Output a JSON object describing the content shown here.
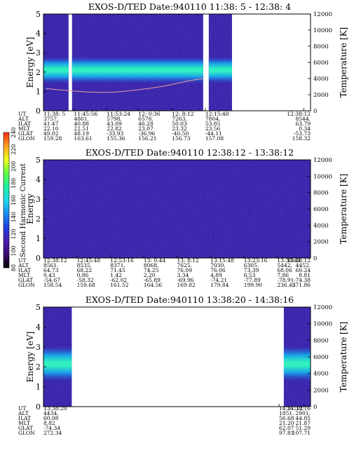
{
  "colorbar": {
    "label": "Second Harmonic Current",
    "ticks": [
      "80",
      "100",
      "120",
      "140",
      "160",
      "180",
      "200",
      "220",
      "240"
    ],
    "stops": [
      "#000000",
      "#3a0a70",
      "#4a1fb0",
      "#2040e0",
      "#1890f0",
      "#20d8e8",
      "#20f0a0",
      "#60ff40",
      "#f0ff20",
      "#ffa020",
      "#ff2a10"
    ]
  },
  "chart_data": [
    {
      "type": "heatmap",
      "title": "EXOS-D/TED   Date:940110  11:38: 5 - 12:38: 4",
      "ylabel": "Energy [eV]",
      "y2label": "Temperature [K]",
      "ylim": [
        0,
        5
      ],
      "y2lim": [
        0,
        12000
      ],
      "yticks": [
        "0",
        "1",
        "2",
        "3",
        "4",
        "5"
      ],
      "y2ticks": [
        "0",
        "2000",
        "4000",
        "6000",
        "8000",
        "10000",
        "12000"
      ],
      "row_labels": [
        "UT",
        "ALT",
        "ILAT",
        "MLT",
        "GLAT",
        "GLON"
      ],
      "columns": [
        [
          "11:38: 5",
          "3757.",
          "41.47",
          "22.10",
          "49.02",
          "159.28"
        ],
        [
          "11:45:56",
          "4861.",
          "40.88",
          "22.51",
          "48.19",
          "163.61"
        ],
        [
          "11:53:24",
          "5798.",
          "43.09",
          "22.82",
          "-33.93",
          "155.36"
        ],
        [
          "12: 0:36",
          "6578.",
          "46.28",
          "23.07",
          "-36.96",
          "156.21"
        ],
        [
          "12: 8:12",
          "7263.",
          "50.03",
          "23.32",
          "-40.50",
          "156.73"
        ],
        [
          "12:15:48",
          "7804.",
          "53.85",
          "23.56",
          "-44.11",
          "157.08"
        ],
        [
          "12:38:12",
          "8544.",
          "63.79",
          "0.34",
          "-53.73",
          "158.32"
        ]
      ],
      "column_fractions": [
        0.0,
        0.114,
        0.237,
        0.355,
        0.481,
        0.606,
        0.975
      ],
      "data_segments": [
        [
          0.0,
          0.094
        ],
        [
          0.107,
          0.598
        ],
        [
          0.619,
          0.706
        ]
      ],
      "band": {
        "center_ev": 2.1,
        "halfwidth_ev": 0.35
      },
      "temperature_k": [
        2750,
        2600,
        2450,
        2350,
        2280,
        2300,
        2420,
        2600,
        2800,
        3050,
        3400,
        3750,
        4000
      ]
    },
    {
      "type": "heatmap",
      "title": "EXOS-D/TED   Date:940110  12:38:12 - 13:38:12",
      "ylabel": "Energy",
      "y2label": "Temperature [K]",
      "ylim": [
        0,
        5
      ],
      "y2lim": [
        0,
        12000
      ],
      "yticks": [
        "0",
        "1",
        "2",
        "3",
        "4",
        "5"
      ],
      "y2ticks": [
        "0",
        "2000",
        "4000",
        "6000",
        "8000",
        "10000",
        "12000"
      ],
      "row_labels": [
        "UT",
        "ALT",
        "ILAT",
        "MLT",
        "GLAT",
        "GLON"
      ],
      "columns": [
        [
          "12:38:12",
          "8561.",
          "64.73",
          "0.43",
          "-54.67",
          "158.54"
        ],
        [
          "12:45:48",
          "8535.",
          "68.22",
          "0.86",
          "-58.32",
          "159.68"
        ],
        [
          "12:53:16",
          "8371.",
          "71.45",
          "1.42",
          "-62.02",
          "161.52"
        ],
        [
          "13: 0:44",
          "8068.",
          "74.25",
          "2.20",
          "-65.89",
          "164.56"
        ],
        [
          "13: 8:12",
          "7625.",
          "76.09",
          "3.34",
          "-69.96",
          "169.82"
        ],
        [
          "13:15:48",
          "7030.",
          "76.06",
          "4.89",
          "-74.21",
          "179.84"
        ],
        [
          "13:23:16",
          "6305.",
          "73.39",
          "6.53",
          "-77.89",
          "199.90"
        ],
        [
          "13:30:44",
          "5442.",
          "68.06",
          "7.86",
          "-78.91",
          "236.45"
        ],
        [
          "13:38:12",
          "4452.",
          "60.24",
          "8.81",
          "-74.38",
          "271.86"
        ]
      ],
      "column_fractions": [
        0.0,
        0.125,
        0.25,
        0.375,
        0.5,
        0.625,
        0.75,
        0.875,
        1.0
      ],
      "data_segments": [
        [
          0.0,
          1.0
        ]
      ],
      "band": null,
      "temperature_k": []
    },
    {
      "type": "heatmap",
      "title": "EXOS-D/TED   Date:940110  13:38:20 - 14:38:16",
      "ylabel": "Energy [eV]",
      "y2label": "Temperature [K]",
      "ylim": [
        0,
        5
      ],
      "y2lim": [
        0,
        12000
      ],
      "yticks": [
        "0",
        "1",
        "2",
        "3",
        "4",
        "5"
      ],
      "y2ticks": [
        "0",
        "2000",
        "4000",
        "6000",
        "8000",
        "10000",
        "12000"
      ],
      "row_labels": [
        "UT",
        "ALT",
        "ILAT",
        "MLT",
        "GLAT",
        "GLON"
      ],
      "columns": [
        [
          "13:38:20",
          "4434.",
          "60.08",
          "8.82",
          "-74.34",
          "272.34"
        ],
        [
          "14:31:12",
          "1851.",
          "56.68",
          "21.20",
          "62.07",
          "97.81"
        ],
        [
          "14:38:16",
          "2901.",
          "44.85",
          "21.87",
          "51.29",
          "107.71"
        ]
      ],
      "column_fractions": [
        0.0,
        0.882,
        0.976
      ],
      "data_segments": [
        [
          0.0,
          0.106
        ],
        [
          0.9,
          1.0
        ]
      ],
      "band": {
        "center_ev": 2.15,
        "halfwidth_ev": 0.45
      },
      "temperature_k": []
    }
  ]
}
